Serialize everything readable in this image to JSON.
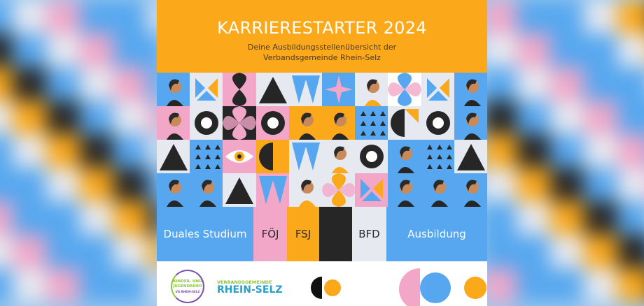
{
  "poster": {
    "title": "KARRIERESTARTER 2024",
    "subtitle_line1": "Deine Ausbildungsstellenübersicht der",
    "subtitle_line2": "Verbandsgemeinde Rhein-Selz"
  },
  "categories": [
    {
      "label": "Duales Studium",
      "color": "#56a7ef",
      "text_color": "#ffffff"
    },
    {
      "label": "FÖJ",
      "color": "#f2a7c8",
      "text_color": "#2a2a2a"
    },
    {
      "label": "FSJ",
      "color": "#fba81a",
      "text_color": "#2a2a2a"
    },
    {
      "label": "",
      "color": "#262626",
      "text_color": "#ffffff"
    },
    {
      "label": "BFD",
      "color": "#e6e9f0",
      "text_color": "#2a2a2a"
    },
    {
      "label": "Ausbildung",
      "color": "#56a7ef",
      "text_color": "#ffffff"
    }
  ],
  "footer": {
    "logo_kinder_jugendbuero": {
      "line1": "KINDER- UND",
      "line2": "JUGENDBÜRO",
      "line3": "VG RHEIN-SELZ"
    },
    "logo_verbandsgemeinde": {
      "line1": "VERBANDSGEMEINDE",
      "line2": "RHEIN-SELZ"
    }
  },
  "colors": {
    "orange": "#fba81a",
    "blue": "#56a7ef",
    "pink": "#f2a7c8",
    "black": "#262626",
    "light": "#e6e9f0"
  }
}
